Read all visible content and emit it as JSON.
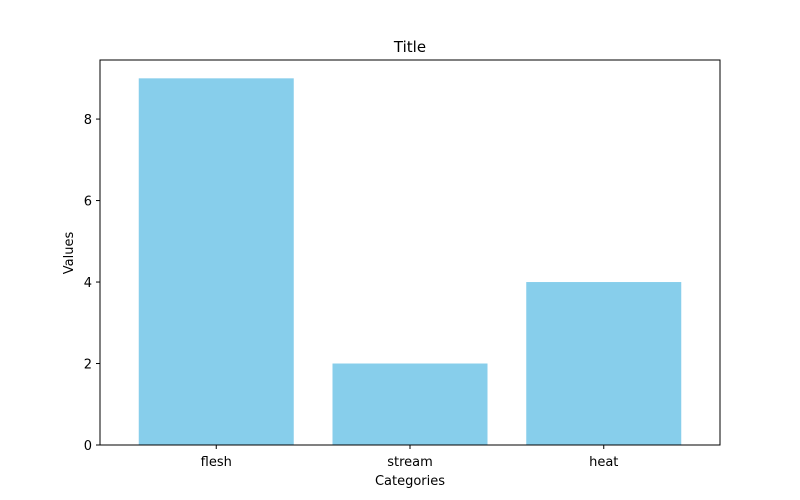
{
  "chart_data": {
    "type": "bar",
    "title": "Title",
    "xlabel": "Categories",
    "ylabel": "Values",
    "categories": [
      "flesh",
      "stream",
      "heat"
    ],
    "values": [
      9,
      2,
      4
    ],
    "ylim": [
      0,
      9.45
    ],
    "yticks": [
      "0",
      "2",
      "4",
      "6",
      "8"
    ],
    "bar_color": "#87CEEB",
    "grid": false,
    "legend": "none"
  }
}
